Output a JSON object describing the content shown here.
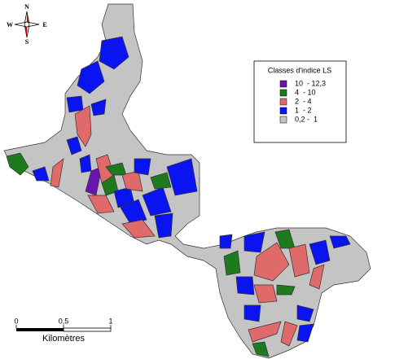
{
  "compass": {
    "north": "N",
    "south": "S",
    "east": "E",
    "west": "W"
  },
  "legend": {
    "title": "Classes d'indice LS",
    "entries": [
      {
        "label": "10  - 12,3",
        "color": "#6a14b0"
      },
      {
        "label": "4  - 10",
        "color": "#1f7a1f"
      },
      {
        "label": "2  - 4",
        "color": "#e06a6a"
      },
      {
        "label": "1  - 2",
        "color": "#0a14f0"
      },
      {
        "label": "0,2 -  1",
        "color": "#c4c4c4"
      }
    ]
  },
  "scale": {
    "labels": [
      "0",
      "0,5",
      "1"
    ],
    "unit": "Kilomètres"
  }
}
